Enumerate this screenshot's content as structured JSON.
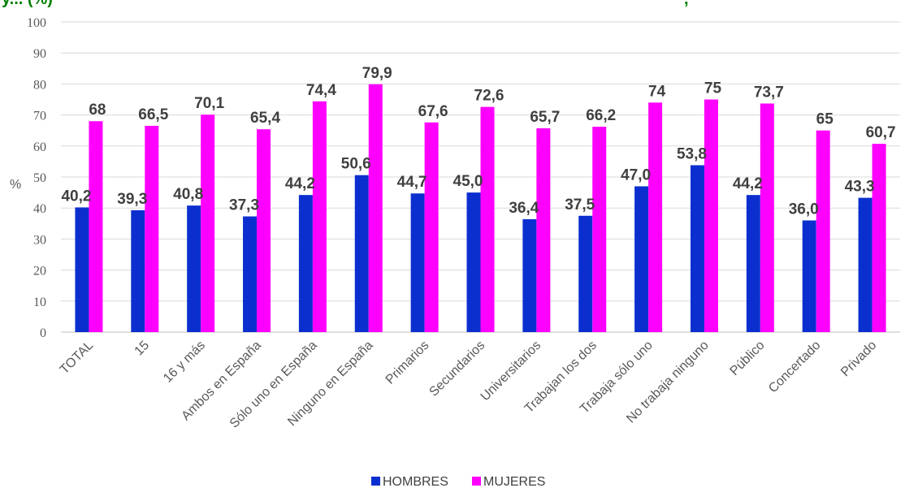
{
  "chart_data": {
    "type": "bar",
    "title_fragment_left": "y... (%)",
    "title_fragment_right": ",",
    "ylabel": "%",
    "ylim": [
      0,
      100
    ],
    "yticks": [
      0,
      10,
      20,
      30,
      40,
      50,
      60,
      70,
      80,
      90,
      100
    ],
    "grid": true,
    "legend_position": "bottom",
    "categories": [
      "TOTAL",
      "15",
      "16 y más",
      "Ambos en España",
      "Sólo uno en España",
      "Ninguno en España",
      "Primarios",
      "Secundarios",
      "Universitarios",
      "Trabajan los dos",
      "Trabaja sólo uno",
      "No trabaja ninguno",
      "Público",
      "Concertado",
      "Privado"
    ],
    "series": [
      {
        "name": "HOMBRES",
        "color": "#0b2fcf",
        "values": [
          40.2,
          39.3,
          40.8,
          37.3,
          44.2,
          50.6,
          44.7,
          45.0,
          36.4,
          37.5,
          47.0,
          53.8,
          44.2,
          36.0,
          43.3
        ],
        "labels": [
          "40,2",
          "39,3",
          "40,8",
          "37,3",
          "44,2",
          "50,6",
          "44,7",
          "45,0",
          "36,4",
          "37,5",
          "47,0",
          "53,8",
          "44,2",
          "36,0",
          "43,3"
        ]
      },
      {
        "name": "MUJERES",
        "color": "#ff00ff",
        "values": [
          68,
          66.5,
          70.1,
          65.4,
          74.4,
          79.9,
          67.6,
          72.6,
          65.7,
          66.2,
          74,
          75,
          73.7,
          65,
          60.7
        ],
        "labels": [
          "68",
          "66,5",
          "70,1",
          "65,4",
          "74,4",
          "79,9",
          "67,6",
          "72,6",
          "65,7",
          "66,2",
          "74",
          "75",
          "73,7",
          "65",
          "60,7"
        ]
      }
    ]
  }
}
